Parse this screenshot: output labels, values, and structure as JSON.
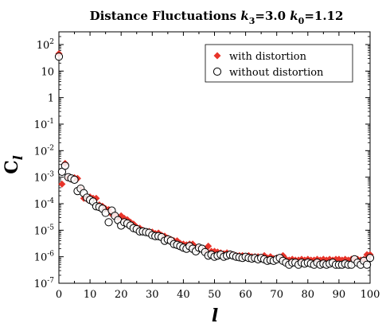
{
  "chart_data": {
    "type": "scatter",
    "title": "Distance Fluctuations k3=3.0 k0=1.12",
    "title_parts": {
      "prefix": "Distance Fluctuations ",
      "k3_sym": "k",
      "k3_sub": "3",
      "k3_val": "=3.0 ",
      "k0_sym": "k",
      "k0_sub": "0",
      "k0_val": "=1.12"
    },
    "xlabel": "l",
    "ylabel": "C",
    "ylabel_sub": "l",
    "xlim": [
      0,
      100
    ],
    "ylim_exponent": [
      -7,
      3
    ],
    "y_scale": "log",
    "grid": false,
    "legend_position": "top-right",
    "x_ticks": [
      "0",
      "10",
      "20",
      "30",
      "40",
      "50",
      "60",
      "70",
      "80",
      "90",
      "100"
    ],
    "y_ticks": [
      {
        "base": "10",
        "exp": "-7",
        "value": 1e-07
      },
      {
        "base": "10",
        "exp": "-6",
        "value": 1e-06
      },
      {
        "base": "10",
        "exp": "-5",
        "value": 1e-05
      },
      {
        "base": "10",
        "exp": "-4",
        "value": 0.0001
      },
      {
        "base": "10",
        "exp": "-3",
        "value": 0.001
      },
      {
        "base": "10",
        "exp": "-2",
        "value": 0.01
      },
      {
        "base": "10",
        "exp": "-1",
        "value": 0.1
      },
      {
        "base": "1",
        "exp": "",
        "value": 1
      },
      {
        "base": "10",
        "exp": "",
        "value": 10
      },
      {
        "base": "10",
        "exp": "2",
        "value": 100
      }
    ],
    "series": [
      {
        "name": "with distortion",
        "marker": "diamond",
        "color": "#e8342a",
        "x": [
          0,
          1,
          2,
          3,
          4,
          5,
          6,
          7,
          8,
          9,
          10,
          11,
          12,
          13,
          14,
          15,
          16,
          17,
          18,
          19,
          20,
          21,
          22,
          23,
          24,
          25,
          26,
          27,
          28,
          29,
          30,
          31,
          32,
          33,
          34,
          35,
          36,
          37,
          38,
          39,
          40,
          41,
          42,
          43,
          44,
          45,
          46,
          47,
          48,
          49,
          50,
          51,
          52,
          53,
          54,
          55,
          56,
          57,
          58,
          59,
          60,
          61,
          62,
          63,
          64,
          65,
          66,
          67,
          68,
          69,
          70,
          71,
          72,
          73,
          74,
          75,
          76,
          77,
          78,
          79,
          80,
          81,
          82,
          83,
          84,
          85,
          86,
          87,
          88,
          89,
          90,
          91,
          92,
          93,
          94,
          95,
          96,
          97,
          98,
          99,
          100
        ],
        "y": [
          45,
          0.00055,
          0.0033,
          0.00095,
          0.00085,
          0.00095,
          0.0009,
          0.00035,
          0.00016,
          0.00015,
          0.00018,
          0.00016,
          0.00016,
          9e-05,
          8e-05,
          6.5e-05,
          6e-05,
          4e-05,
          3.8e-05,
          3e-05,
          3.5e-05,
          2.8e-05,
          2.5e-05,
          2e-05,
          1.7e-05,
          1.3e-05,
          1.2e-05,
          1e-05,
          9e-06,
          9e-06,
          8.5e-06,
          7.5e-06,
          7.8e-06,
          6.5e-06,
          6e-06,
          5e-06,
          4.5e-06,
          4e-06,
          4e-06,
          3.2e-06,
          3e-06,
          2.8e-06,
          3e-06,
          3e-06,
          2.2e-06,
          2.1e-06,
          2e-06,
          1.8e-06,
          2.5e-06,
          1.6e-06,
          1.6e-06,
          1.5e-06,
          1.4e-06,
          1.3e-06,
          1.4e-06,
          1.3e-06,
          1.2e-06,
          1.1e-06,
          1.1e-06,
          1.1e-06,
          1e-06,
          1.1e-06,
          1e-06,
          1e-06,
          1e-06,
          9.5e-07,
          1.1e-06,
          9e-07,
          1e-06,
          8.5e-07,
          9e-07,
          8.5e-07,
          1.1e-06,
          8e-07,
          7.5e-07,
          8e-07,
          7.5e-07,
          7.5e-07,
          8e-07,
          7.5e-07,
          8e-07,
          7.5e-07,
          7.5e-07,
          8e-07,
          7.5e-07,
          8e-07,
          7.5e-07,
          8e-07,
          7.5e-07,
          8e-07,
          8e-07,
          7.5e-07,
          8e-07,
          7.5e-07,
          8e-07,
          7.5e-07,
          8e-07,
          7.5e-07,
          8e-07,
          1.2e-06,
          1.2e-06
        ]
      },
      {
        "name": "without distortion",
        "marker": "circle",
        "color": "#000000",
        "x": [
          0,
          1,
          2,
          3,
          4,
          5,
          6,
          7,
          8,
          9,
          10,
          11,
          12,
          13,
          14,
          15,
          16,
          17,
          18,
          19,
          20,
          21,
          22,
          23,
          24,
          25,
          26,
          27,
          28,
          29,
          30,
          31,
          32,
          33,
          34,
          35,
          36,
          37,
          38,
          39,
          40,
          41,
          42,
          43,
          44,
          45,
          46,
          47,
          48,
          49,
          50,
          51,
          52,
          53,
          54,
          55,
          56,
          57,
          58,
          59,
          60,
          61,
          62,
          63,
          64,
          65,
          66,
          67,
          68,
          69,
          70,
          71,
          72,
          73,
          74,
          75,
          76,
          77,
          78,
          79,
          80,
          81,
          82,
          83,
          84,
          85,
          86,
          87,
          88,
          89,
          90,
          91,
          92,
          93,
          94,
          95,
          96,
          97,
          98,
          99,
          100
        ],
        "y": [
          35,
          0.0016,
          0.0027,
          0.001,
          0.0009,
          0.0008,
          0.0003,
          0.00037,
          0.00025,
          0.00017,
          0.00014,
          0.00012,
          8e-05,
          7.5e-05,
          6.5e-05,
          4.5e-05,
          2e-05,
          5.5e-05,
          3.5e-05,
          2.4e-05,
          1.5e-05,
          2e-05,
          1.8e-05,
          1.5e-05,
          1.2e-05,
          1.1e-05,
          9e-06,
          9e-06,
          8.5e-06,
          8e-06,
          6.5e-06,
          6e-06,
          6e-06,
          5.5e-06,
          4e-06,
          4.5e-06,
          4e-06,
          3e-06,
          2.8e-06,
          2.5e-06,
          2.2e-06,
          2e-06,
          2.5e-06,
          2e-06,
          1.6e-06,
          2.2e-06,
          2e-06,
          1.5e-06,
          1.1e-06,
          1.2e-06,
          1e-06,
          1.1e-06,
          1.2e-06,
          1e-06,
          1.1e-06,
          1.2e-06,
          1.1e-06,
          1e-06,
          9.5e-07,
          9e-07,
          1e-06,
          9e-07,
          8.5e-07,
          9e-07,
          8e-07,
          9e-07,
          8e-07,
          7e-07,
          7.5e-07,
          7e-07,
          8e-07,
          9e-07,
          7e-07,
          6e-07,
          5e-07,
          6e-07,
          6e-07,
          5e-07,
          6e-07,
          5.5e-07,
          6e-07,
          5.5e-07,
          5e-07,
          6e-07,
          5e-07,
          5.5e-07,
          5e-07,
          5.5e-07,
          6e-07,
          5e-07,
          5e-07,
          5e-07,
          5.5e-07,
          5e-07,
          5e-07,
          8e-07,
          6e-07,
          5e-07,
          7e-07,
          5e-07,
          9e-07
        ]
      }
    ]
  }
}
